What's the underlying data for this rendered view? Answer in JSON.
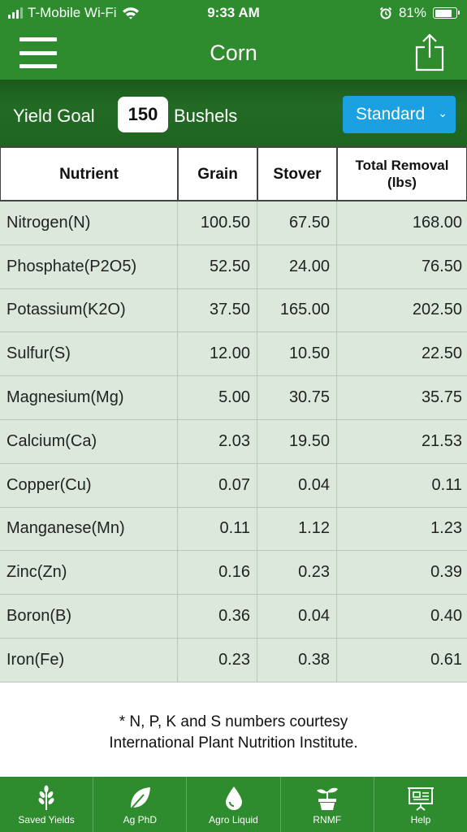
{
  "status_bar": {
    "carrier": "T-Mobile Wi-Fi",
    "time": "9:33 AM",
    "battery": "81%",
    "battery_level": 0.81
  },
  "nav": {
    "title": "Corn",
    "icons": {
      "menu": "hamburger-icon",
      "share": "share-icon"
    }
  },
  "yield": {
    "label": "Yield Goal",
    "value": "150",
    "unit": "Bushels",
    "mode": "Standard"
  },
  "table": {
    "headers": [
      "Nutrient",
      "Grain",
      "Stover",
      "Total Removal (lbs)"
    ],
    "rows": [
      [
        "Nitrogen(N)",
        "100.50",
        "67.50",
        "168.00"
      ],
      [
        "Phosphate(P2O5)",
        "52.50",
        "24.00",
        "76.50"
      ],
      [
        "Potassium(K2O)",
        "37.50",
        "165.00",
        "202.50"
      ],
      [
        "Sulfur(S)",
        "12.00",
        "10.50",
        "22.50"
      ],
      [
        "Magnesium(Mg)",
        "5.00",
        "30.75",
        "35.75"
      ],
      [
        "Calcium(Ca)",
        "2.03",
        "19.50",
        "21.53"
      ],
      [
        "Copper(Cu)",
        "0.07",
        "0.04",
        "0.11"
      ],
      [
        "Manganese(Mn)",
        "0.11",
        "1.12",
        "1.23"
      ],
      [
        "Zinc(Zn)",
        "0.16",
        "0.23",
        "0.39"
      ],
      [
        "Boron(B)",
        "0.36",
        "0.04",
        "0.40"
      ],
      [
        "Iron(Fe)",
        "0.23",
        "0.38",
        "0.61"
      ]
    ]
  },
  "footnote": {
    "line1": "* N, P, K and S numbers courtesy",
    "line2": "International Plant Nutrition Institute."
  },
  "tabs": [
    {
      "label": "Saved Yields",
      "icon": "wheat-icon"
    },
    {
      "label": "Ag PhD",
      "icon": "leaf-icon"
    },
    {
      "label": "Agro Liquid",
      "icon": "droplet-icon"
    },
    {
      "label": "RNMF",
      "icon": "plant-pot-icon"
    },
    {
      "label": "Help",
      "icon": "presentation-board-icon"
    }
  ],
  "colors": {
    "brand_green": "#2e8b2e",
    "accent_blue": "#1ba1e2",
    "row_background": "#dce8dc"
  }
}
